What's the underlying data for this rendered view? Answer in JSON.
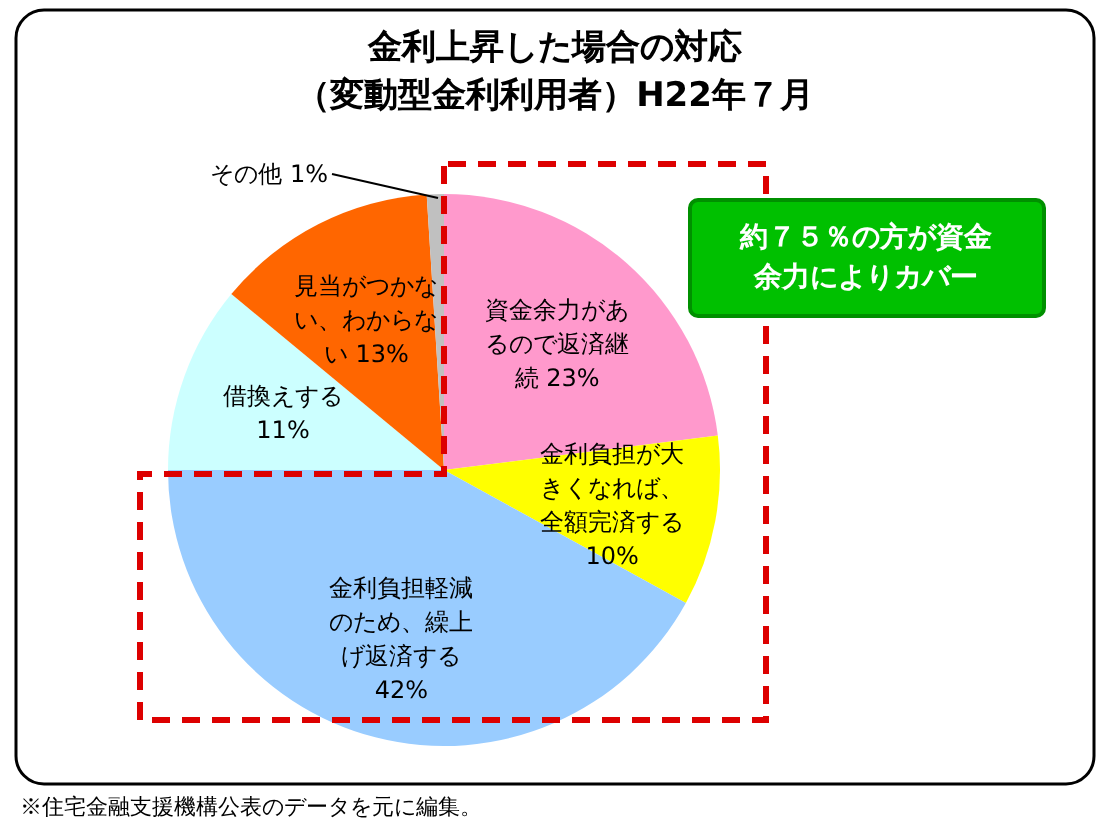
{
  "chart_data": {
    "type": "pie",
    "title": "金利上昇した場合の対応",
    "subtitle": "（変動型金利利用者）H22年７月",
    "categories": [
      "資金余力があるので返済継続",
      "金利負担が大きくなれば、全額完済する",
      "金利負担軽減のため、繰上げ返済する",
      "借換えする",
      "見当がつかない、わからない",
      "その他"
    ],
    "values": [
      23,
      10,
      42,
      11,
      13,
      1
    ],
    "value_labels": [
      "23%",
      "10%",
      "42%",
      "11%",
      "13%",
      "1%"
    ],
    "colors": [
      "#ff99cc",
      "#ffff00",
      "#99ccff",
      "#ccffff",
      "#ff6600",
      "#c0c0c0"
    ],
    "annotations": [
      "約７５％の方が資金余力によりカバー",
      "※住宅金融支援機構公表のデータを元に編集。"
    ]
  }
}
